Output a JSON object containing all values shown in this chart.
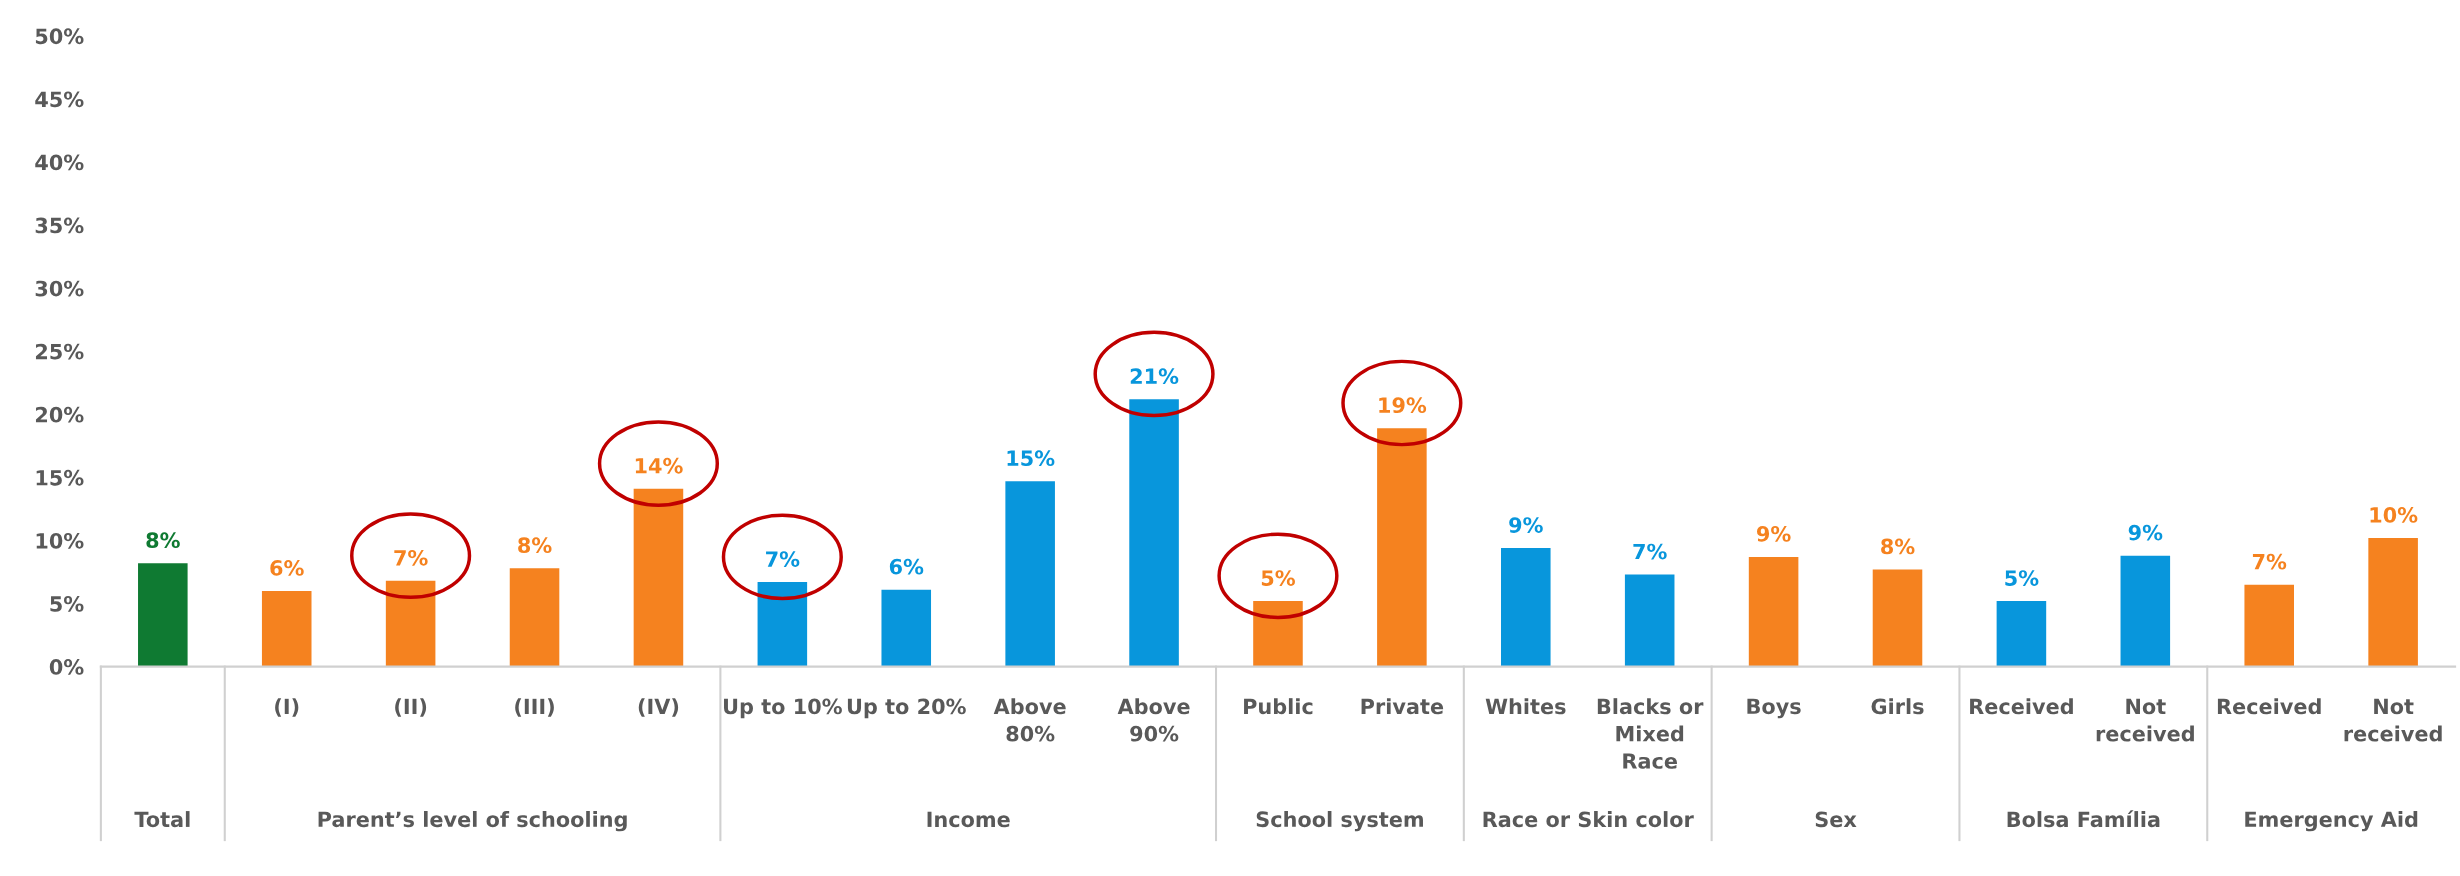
{
  "chart_data": {
    "type": "bar",
    "categories": [
      null,
      "(I)",
      "(II)",
      "(III)",
      "(IV)",
      "Up to 10%",
      "Up to 20%",
      "Above\n80%",
      "Above\n90%",
      "Public",
      "Private",
      "Whites",
      "Blacks or\nMixed\nRace",
      "Boys",
      "Girls",
      "Received",
      "Not\nreceived",
      "Received",
      "Not\nreceived"
    ],
    "values": [
      8.2,
      6.0,
      6.8,
      7.8,
      14.1,
      6.7,
      6.1,
      14.7,
      21.2,
      5.2,
      18.9,
      9.4,
      7.3,
      8.7,
      7.7,
      5.2,
      8.8,
      6.5,
      10.2
    ],
    "colors": [
      "#0f7a32",
      "#f5821f",
      "#f5821f",
      "#f5821f",
      "#f5821f",
      "#0896dc",
      "#0896dc",
      "#0896dc",
      "#0896dc",
      "#f5821f",
      "#f5821f",
      "#0896dc",
      "#0896dc",
      "#f5821f",
      "#f5821f",
      "#0896dc",
      "#0896dc",
      "#f5821f",
      "#f5821f"
    ],
    "value_labels": [
      "8%",
      "6%",
      "7%",
      "8%",
      "14%",
      "7%",
      "6%",
      "15%",
      "21%",
      "5%",
      "19%",
      "9%",
      "7%",
      "9%",
      "8%",
      "5%",
      "9%",
      "7%",
      "10%"
    ],
    "annotations": [
      "Total",
      "Parent’s level of schooling",
      "Income",
      "School system",
      "Race or Skin color",
      "Sex",
      "Bolsa Família",
      "Emergency Aid"
    ],
    "ylim": [
      0,
      50
    ],
    "yticks": [
      {
        "value": 0,
        "label": "0%"
      },
      {
        "value": 5,
        "label": "5%"
      },
      {
        "value": 10,
        "label": "10%"
      },
      {
        "value": 15,
        "label": "15%"
      },
      {
        "value": 20,
        "label": "20%"
      },
      {
        "value": 25,
        "label": "25%"
      },
      {
        "value": 30,
        "label": "30%"
      },
      {
        "value": 35,
        "label": "35%"
      },
      {
        "value": 40,
        "label": "40%"
      },
      {
        "value": 45,
        "label": "45%"
      },
      {
        "value": 50,
        "label": "50%"
      }
    ],
    "grid": false
  }
}
